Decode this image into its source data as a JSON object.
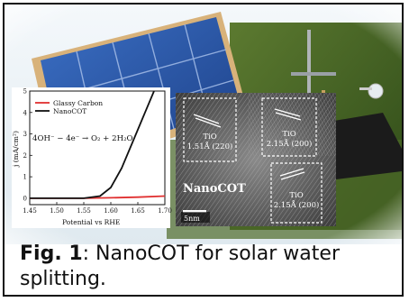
{
  "figure": {
    "plot": {
      "legend": [
        "Glassy Carbon",
        "NanoCOT"
      ],
      "legend_colors": [
        "#e03030",
        "#111111"
      ],
      "equation": "4OH⁻ − 4e⁻ → O₂ + 2H₂O",
      "ylabel": "j (mA/cm²)",
      "xlabel": "Potential vs RHE",
      "yticks": [
        "0",
        "1",
        "2",
        "3",
        "4",
        "5"
      ],
      "xticks": [
        "1.45",
        "1.50",
        "1.55",
        "1.60",
        "1.65",
        "1.70"
      ]
    },
    "tem": {
      "label": "NanoCOT",
      "scale_bar": "5nm",
      "boxes": [
        {
          "name": "TiO",
          "value": "1.51Å (220)"
        },
        {
          "name": "TiO",
          "value": "2.15Å (200)"
        },
        {
          "name": "TiO",
          "value": "2.15Å (200)"
        }
      ]
    }
  },
  "chart_data": {
    "type": "line",
    "xlabel": "Potential vs RHE",
    "ylabel": "j (mA/cm²)",
    "xlim": [
      1.45,
      1.7
    ],
    "ylim": [
      -0.3,
      5
    ],
    "series": [
      {
        "name": "Glassy Carbon",
        "color": "#e03030",
        "x": [
          1.45,
          1.5,
          1.55,
          1.6,
          1.65,
          1.7
        ],
        "y": [
          0,
          0,
          0,
          0.02,
          0.05,
          0.1
        ]
      },
      {
        "name": "NanoCOT",
        "color": "#111111",
        "x": [
          1.45,
          1.5,
          1.55,
          1.58,
          1.6,
          1.62,
          1.64,
          1.66,
          1.68
        ],
        "y": [
          0,
          0,
          0,
          0.1,
          0.5,
          1.4,
          2.6,
          3.8,
          5.0
        ]
      }
    ]
  },
  "caption": {
    "bold": "Fig. 1",
    "text": ": NanoCOT for solar water splitting."
  }
}
